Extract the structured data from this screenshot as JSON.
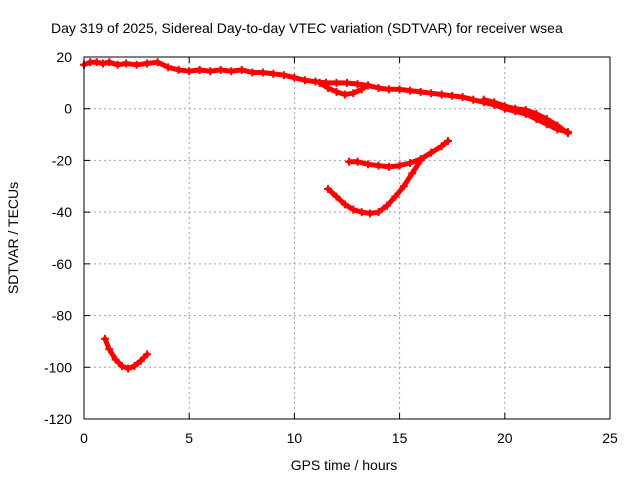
{
  "chart_data": {
    "type": "line",
    "title": "Day 319 of 2025, Sidereal Day-to-day VTEC variation (SDTVAR) for receiver wsea",
    "xlabel": "GPS time / hours",
    "ylabel": "SDTVAR / TECUs",
    "xlim": [
      0,
      25
    ],
    "ylim": [
      -120,
      20
    ],
    "xticks": [
      0,
      5,
      10,
      15,
      20,
      25
    ],
    "yticks": [
      20,
      0,
      -20,
      -40,
      -60,
      -80,
      -100,
      -120
    ],
    "grid": true,
    "legend": "none",
    "series_color": "#ff0000",
    "series": [
      {
        "name": "arc-main",
        "x": [
          0.0,
          0.3,
          0.6,
          0.9,
          1.2,
          1.6,
          2.0,
          2.5,
          3.0,
          3.5,
          4.0,
          4.5,
          5.0,
          5.5,
          6.0,
          6.5,
          7.0,
          7.5,
          8.0,
          8.5,
          9.0,
          9.5,
          10.0,
          10.5,
          11.0,
          11.5,
          12.0,
          12.5,
          13.0,
          13.5,
          14.0,
          14.5,
          15.0,
          15.5,
          16.0,
          16.5,
          17.0,
          17.5,
          18.0,
          18.5,
          19.0,
          19.5,
          20.0,
          20.5,
          21.0,
          21.5,
          22.0,
          22.5,
          23.0
        ],
        "y": [
          17,
          18,
          18,
          17.5,
          18,
          17,
          17.5,
          17,
          17.5,
          18,
          16,
          15,
          14.5,
          15,
          14.5,
          15,
          14.5,
          15,
          14,
          14,
          13.5,
          13,
          12,
          11,
          10.5,
          10,
          10,
          10,
          9.5,
          9,
          8,
          7.5,
          7.5,
          7,
          6.5,
          6,
          5.5,
          5,
          4.5,
          3.5,
          2.5,
          1.5,
          0,
          -1,
          -2,
          -4,
          -6,
          -8,
          -9
        ]
      },
      {
        "name": "arc-main-spread",
        "x": [
          19.0,
          19.5,
          20.0,
          20.5,
          21.0,
          21.5,
          22.0,
          22.5,
          23.0
        ],
        "y": [
          3.5,
          2.5,
          1.0,
          0.0,
          -0.5,
          -2.0,
          -4.0,
          -6.5,
          -9.5
        ]
      },
      {
        "name": "arc-dip",
        "x": [
          11.2,
          11.6,
          12.0,
          12.4,
          12.8,
          13.2,
          13.5
        ],
        "y": [
          10,
          8,
          6.5,
          5.5,
          6,
          7.5,
          9
        ]
      },
      {
        "name": "arc-bowl",
        "x": [
          11.6,
          12.0,
          12.4,
          12.8,
          13.2,
          13.6,
          14.0,
          14.4,
          14.8,
          15.2,
          15.6,
          16.0
        ],
        "y": [
          -31,
          -34,
          -37,
          -39,
          -40,
          -40.5,
          -40,
          -37.5,
          -34,
          -30,
          -25,
          -20
        ]
      },
      {
        "name": "arc-upper",
        "x": [
          12.6,
          13.0,
          13.5,
          14.0,
          14.5,
          15.0,
          15.5,
          16.0,
          16.5,
          17.0,
          17.3
        ],
        "y": [
          -20.5,
          -20.5,
          -21.5,
          -22,
          -22.5,
          -22,
          -21,
          -19.5,
          -17,
          -14.5,
          -12.5
        ]
      },
      {
        "name": "arc-low",
        "x": [
          1.0,
          1.2,
          1.5,
          1.8,
          2.1,
          2.4,
          2.7,
          3.0
        ],
        "y": [
          -89,
          -93,
          -97,
          -99.5,
          -100.5,
          -99.5,
          -97.5,
          -95
        ]
      }
    ]
  }
}
